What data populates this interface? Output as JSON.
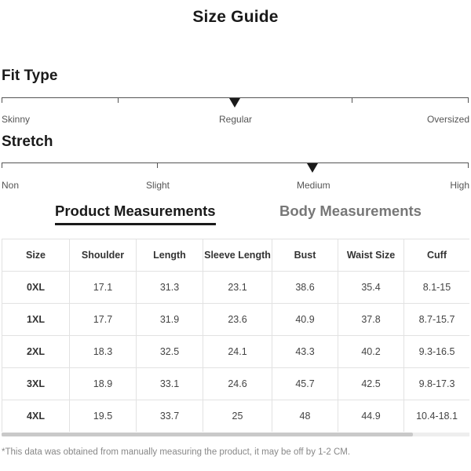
{
  "title": "Size Guide",
  "fit_type": {
    "heading": "Fit Type",
    "labels": [
      "Skinny",
      "Regular",
      "Oversized"
    ],
    "selected": "Regular"
  },
  "stretch": {
    "heading": "Stretch",
    "labels": [
      "Non",
      "Slight",
      "Medium",
      "High"
    ],
    "selected": "Medium"
  },
  "tabs": {
    "active": "Product Measurements",
    "inactive": "Body Measurements"
  },
  "table": {
    "headers": [
      "Size",
      "Shoulder",
      "Length",
      "Sleeve Length",
      "Bust",
      "Waist Size",
      "Cuff"
    ],
    "rows": [
      [
        "0XL",
        "17.1",
        "31.3",
        "23.1",
        "38.6",
        "35.4",
        "8.1-15"
      ],
      [
        "1XL",
        "17.7",
        "31.9",
        "23.6",
        "40.9",
        "37.8",
        "8.7-15.7"
      ],
      [
        "2XL",
        "18.3",
        "32.5",
        "24.1",
        "43.3",
        "40.2",
        "9.3-16.5"
      ],
      [
        "3XL",
        "18.9",
        "33.1",
        "24.6",
        "45.7",
        "42.5",
        "9.8-17.3"
      ],
      [
        "4XL",
        "19.5",
        "33.7",
        "25",
        "48",
        "44.9",
        "10.4-18.1"
      ]
    ]
  },
  "footnote": "*This data was obtained from manually measuring the product, it may be off by 1-2 CM."
}
